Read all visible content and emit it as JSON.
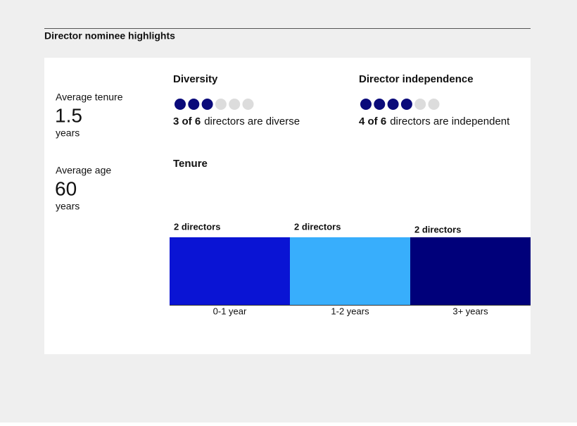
{
  "header": {
    "title": "Director nominee highlights"
  },
  "stats": [
    {
      "label": "Average tenure",
      "value": "1.5",
      "unit": "years"
    },
    {
      "label": "Average age",
      "value": "60",
      "unit": "years"
    }
  ],
  "diversity": {
    "title": "Diversity",
    "filled": 3,
    "total": 6,
    "highlight": "3 of 6",
    "text": "directors are diverse",
    "color": "#0a0a7a",
    "empty_color": "#dcdcdc"
  },
  "independence": {
    "title": "Director independence",
    "filled": 4,
    "total": 6,
    "highlight": "4 of 6",
    "text": "directors are independent",
    "color": "#0a0a7a",
    "empty_color": "#dcdcdc"
  },
  "tenure": {
    "title": "Tenure",
    "segments": [
      {
        "count": 2,
        "label": "2 directors",
        "category": "0-1 year",
        "color": "#0a14d4"
      },
      {
        "count": 2,
        "label": "2 directors",
        "category": "1-2 years",
        "color": "#38aefc"
      },
      {
        "count": 2,
        "label": "2 directors",
        "category": "3+ years",
        "color": "#00007a"
      }
    ]
  }
}
